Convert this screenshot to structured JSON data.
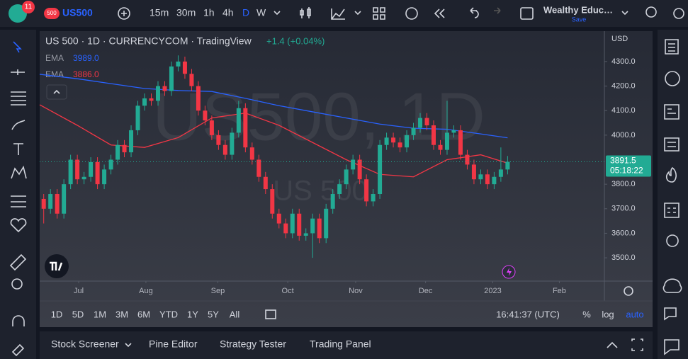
{
  "toolbar": {
    "badge": "11",
    "symbol_tag": "500",
    "symbol": "US500",
    "intervals": [
      "15m",
      "30m",
      "1h",
      "4h",
      "D",
      "W"
    ],
    "layout_name": "Wealthy Educ…",
    "save": "Save"
  },
  "chart_data": {
    "type": "candlestick",
    "title": "US 500 · 1D · CURRENCYCOM · TradingView",
    "change": "+1.4 (+0.04%)",
    "watermark": "US500, 1D",
    "watermark_sub": "US 500",
    "currency": "USD",
    "x": [
      0,
      1,
      2,
      3,
      4,
      5,
      6,
      7,
      8,
      9,
      10,
      11,
      12,
      13,
      14,
      15,
      16,
      17,
      18,
      19,
      20,
      21,
      22,
      23,
      24,
      25,
      26,
      27,
      28,
      29,
      30,
      31,
      32,
      33,
      34,
      35,
      36,
      37,
      38,
      39,
      40,
      41,
      42,
      43,
      44,
      45,
      46,
      47,
      48,
      49,
      50,
      51,
      52,
      53,
      54,
      55,
      56,
      57,
      58,
      59,
      60,
      61,
      62,
      63,
      64,
      65,
      66,
      67,
      68,
      69
    ],
    "open": [
      3740,
      3700,
      3760,
      3680,
      3800,
      3900,
      3820,
      3830,
      3890,
      3800,
      3860,
      3900,
      3960,
      3930,
      4020,
      4120,
      4150,
      4140,
      4200,
      4180,
      4280,
      4300,
      4250,
      4200,
      4100,
      4060,
      4000,
      3960,
      3920,
      4010,
      4110,
      3950,
      3900,
      3830,
      3780,
      3680,
      3640,
      3600,
      3680,
      3590,
      3600,
      3660,
      3580,
      3700,
      3760,
      3800,
      3860,
      3900,
      3820,
      3730,
      3760,
      3960,
      3990,
      3970,
      3950,
      4000,
      4030,
      4070,
      4040,
      3960,
      3940,
      4010,
      4020,
      3920,
      3880,
      3820,
      3840,
      3800,
      3830,
      3860
    ],
    "high": [
      3760,
      3780,
      3780,
      3820,
      3920,
      3920,
      3850,
      3910,
      3910,
      3880,
      3920,
      3980,
      3980,
      4040,
      4140,
      4170,
      4170,
      4220,
      4220,
      4300,
      4325,
      4320,
      4270,
      4220,
      4120,
      4080,
      4020,
      3980,
      4030,
      4140,
      4130,
      3970,
      3920,
      3850,
      3800,
      3700,
      3660,
      3700,
      3700,
      3620,
      3680,
      3680,
      3720,
      3780,
      3820,
      3880,
      3920,
      3920,
      3840,
      3780,
      3980,
      4010,
      4010,
      3990,
      4020,
      4050,
      4090,
      4090,
      4060,
      3980,
      4140,
      4040,
      4040,
      3940,
      3900,
      3860,
      3860,
      3850,
      3950,
      3915
    ],
    "low": [
      3640,
      3680,
      3660,
      3660,
      3780,
      3800,
      3800,
      3810,
      3780,
      3780,
      3840,
      3880,
      3910,
      3910,
      4000,
      4100,
      4120,
      4120,
      4160,
      4160,
      4260,
      4230,
      4180,
      4080,
      4040,
      3980,
      3940,
      3900,
      3900,
      3990,
      3930,
      3880,
      3810,
      3760,
      3660,
      3620,
      3580,
      3580,
      3570,
      3570,
      3500,
      3560,
      3560,
      3680,
      3740,
      3780,
      3840,
      3800,
      3710,
      3710,
      3740,
      3940,
      3950,
      3930,
      3930,
      3980,
      4010,
      4020,
      3940,
      3920,
      3920,
      3990,
      3900,
      3860,
      3800,
      3800,
      3780,
      3780,
      3810,
      3840
    ],
    "close": [
      3700,
      3760,
      3680,
      3800,
      3900,
      3820,
      3830,
      3890,
      3800,
      3860,
      3900,
      3960,
      3930,
      4020,
      4120,
      4150,
      4140,
      4200,
      4180,
      4280,
      4300,
      4250,
      4200,
      4100,
      4060,
      4000,
      3960,
      3920,
      4010,
      4110,
      3950,
      3900,
      3830,
      3780,
      3680,
      3640,
      3600,
      3680,
      3590,
      3600,
      3660,
      3580,
      3700,
      3760,
      3800,
      3860,
      3900,
      3820,
      3730,
      3760,
      3960,
      3990,
      3970,
      3950,
      4000,
      4030,
      4070,
      4040,
      3960,
      3940,
      4010,
      4020,
      3920,
      3880,
      3820,
      3840,
      3800,
      3830,
      3860,
      3891.5
    ],
    "up_color": "#22ab94",
    "down_color": "#f23645",
    "ema": [
      {
        "name": "EMA",
        "color": "#2962ff",
        "value_label": "3989.0",
        "x": [
          -0.6,
          5,
          10,
          15,
          20,
          25,
          30,
          35,
          40,
          45,
          50,
          55,
          60,
          65,
          69
        ],
        "values": [
          4248,
          4230,
          4210,
          4190,
          4182,
          4178,
          4150,
          4120,
          4095,
          4070,
          4045,
          4028,
          4024,
          4005,
          3989
        ]
      },
      {
        "name": "EMA",
        "color": "#f23645",
        "value_label": "3886.0",
        "x": [
          -0.6,
          5,
          10,
          15,
          20,
          25,
          30,
          35,
          40,
          45,
          50,
          55,
          60,
          65,
          69
        ],
        "values": [
          4124,
          4040,
          3960,
          3950,
          3990,
          4070,
          4090,
          4040,
          3970,
          3900,
          3840,
          3830,
          3900,
          3920,
          3886
        ]
      }
    ],
    "last_price": 3891.5,
    "countdown": "05:18:22",
    "xlim": [
      -0.6,
      83.4
    ],
    "ylim": [
      3405,
      4421
    ],
    "xticks": [
      {
        "value": 5.2,
        "label": "Jul"
      },
      {
        "value": 15.2,
        "label": "Aug"
      },
      {
        "value": 25.9,
        "label": "Sep"
      },
      {
        "value": 36.3,
        "label": "Oct"
      },
      {
        "value": 46.4,
        "label": "Nov"
      },
      {
        "value": 56.8,
        "label": "Dec"
      },
      {
        "value": 66.8,
        "label": "2023"
      },
      {
        "value": 76.7,
        "label": "Feb"
      }
    ],
    "yticks": [
      {
        "value": 4300,
        "label": "4300.0"
      },
      {
        "value": 4200,
        "label": "4200.0"
      },
      {
        "value": 4100,
        "label": "4100.0"
      },
      {
        "value": 4000,
        "label": "4000.0"
      },
      {
        "value": 3800,
        "label": "3800.0"
      },
      {
        "value": 3700,
        "label": "3700.0"
      },
      {
        "value": 3600,
        "label": "3600.0"
      },
      {
        "value": 3500,
        "label": "3500.0"
      }
    ]
  },
  "bottom_bar": {
    "ranges": [
      "1D",
      "5D",
      "1M",
      "3M",
      "6M",
      "YTD",
      "1Y",
      "5Y",
      "All"
    ],
    "clock": "16:41:37 (UTC)",
    "percent": "%",
    "log": "log",
    "auto": "auto"
  },
  "panel": {
    "tabs": [
      "Stock Screener",
      "Pine Editor",
      "Strategy Tester",
      "Trading Panel"
    ]
  }
}
